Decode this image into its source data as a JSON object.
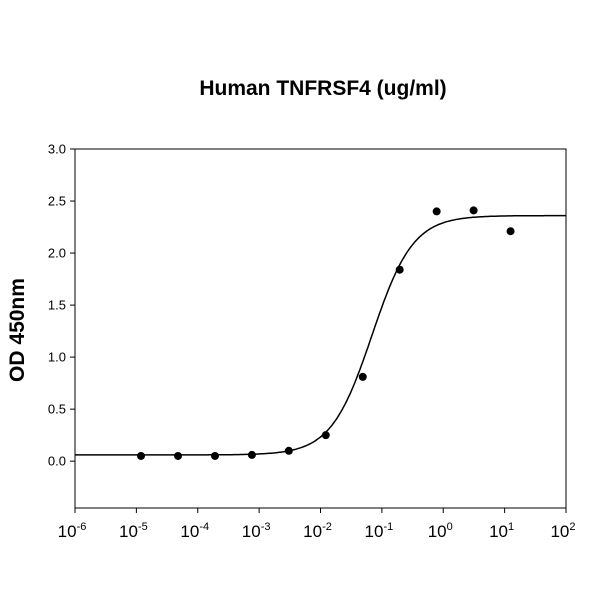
{
  "chart_data": {
    "type": "scatter",
    "title": "Human TNFRSF4 (ug/ml)",
    "xlabel": "",
    "ylabel": "OD 450nm",
    "x_scale": "log",
    "xlim": [
      1e-06,
      100
    ],
    "ylim": [
      -0.45,
      3.0
    ],
    "grid": false,
    "x_tick_labels": [
      {
        "base": "10",
        "exp": "-6"
      },
      {
        "base": "10",
        "exp": "-5"
      },
      {
        "base": "10",
        "exp": "-4"
      },
      {
        "base": "10",
        "exp": "-3"
      },
      {
        "base": "10",
        "exp": "-2"
      },
      {
        "base": "10",
        "exp": "-1"
      },
      {
        "base": "10",
        "exp": "0"
      },
      {
        "base": "10",
        "exp": "1"
      },
      {
        "base": "10",
        "exp": "2"
      }
    ],
    "y_tick_labels": [
      "0.0",
      "0.5",
      "1.0",
      "1.5",
      "2.0",
      "2.5",
      "3.0"
    ],
    "series": [
      {
        "type": "scatter",
        "x": [
          1.19e-05,
          4.77e-05,
          0.000191,
          0.000763,
          0.00305,
          0.0122,
          0.0488,
          0.195,
          0.781,
          3.125,
          12.5
        ],
        "y": [
          0.05,
          0.05,
          0.05,
          0.06,
          0.1,
          0.25,
          0.81,
          1.84,
          2.4,
          2.41,
          2.21
        ],
        "color": "#000000"
      },
      {
        "type": "line",
        "fit": "4-parameter logistic",
        "bottom": 0.06,
        "top": 2.36,
        "ec50": 0.069,
        "hill": 1.3,
        "color": "#000000"
      }
    ]
  }
}
